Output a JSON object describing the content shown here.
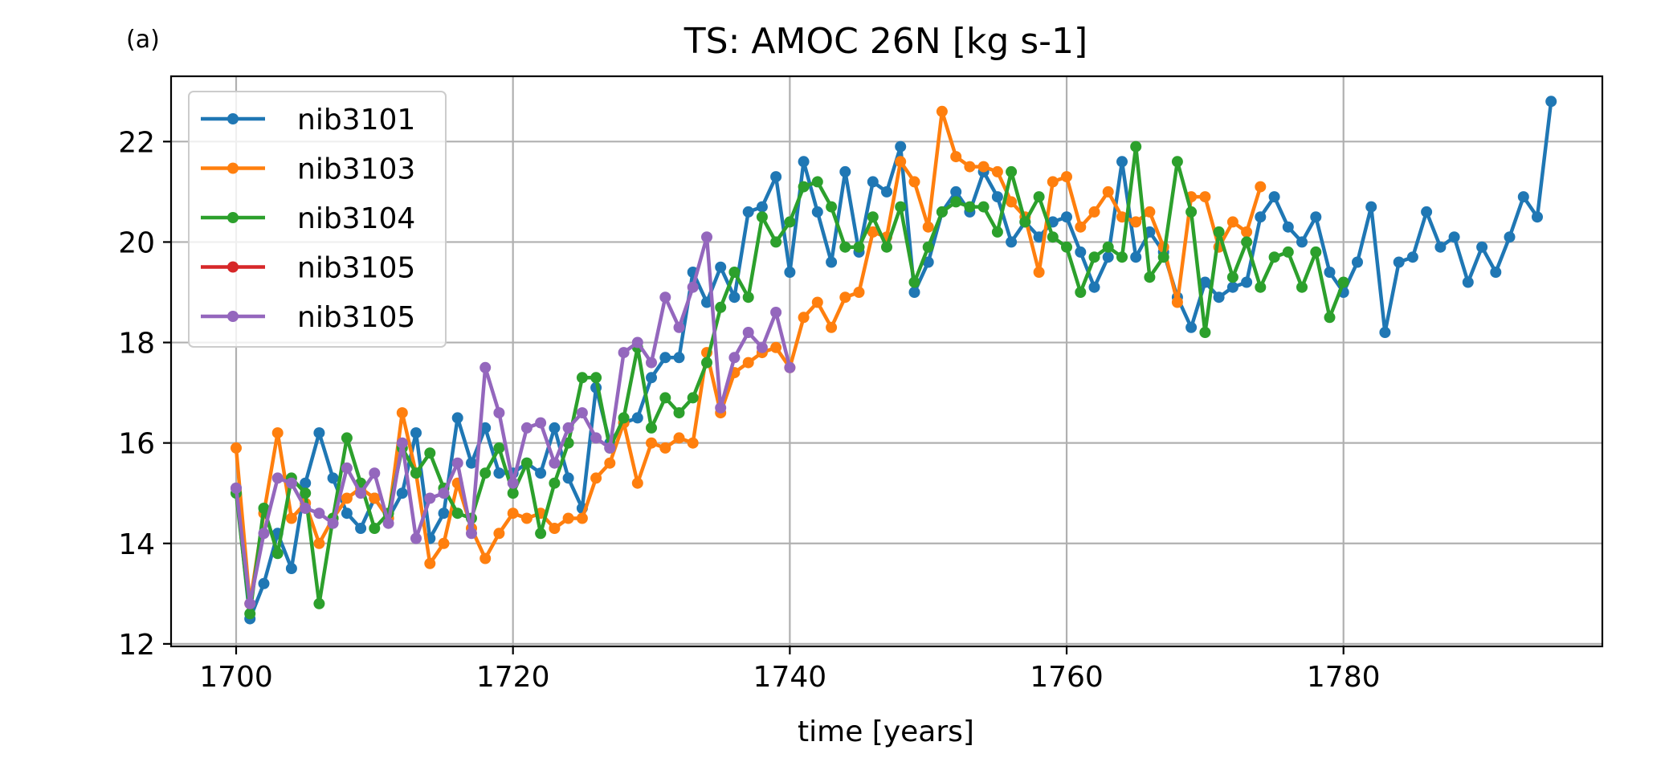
{
  "panel_label": "(a)",
  "chart_data": {
    "type": "line",
    "title": "TS: AMOC 26N [kg s-1]",
    "xlabel": "time [years]",
    "ylabel": "",
    "xlim": [
      1695.3,
      1798.7
    ],
    "ylim": [
      11.95,
      23.3
    ],
    "xticks": [
      1700,
      1720,
      1740,
      1760,
      1780
    ],
    "yticks": [
      12,
      14,
      16,
      18,
      20,
      22
    ],
    "grid": true,
    "legend_position": "upper-left",
    "series": [
      {
        "name": "nib3101",
        "color": "#1f77b4",
        "x_start": 1700,
        "values": [
          15.1,
          12.5,
          13.2,
          14.2,
          13.5,
          15.2,
          16.2,
          15.3,
          14.6,
          14.3,
          14.9,
          14.5,
          15.0,
          16.2,
          14.1,
          14.6,
          16.5,
          15.6,
          16.3,
          15.4,
          15.4,
          15.6,
          15.4,
          16.3,
          15.3,
          14.7,
          17.1,
          16.0,
          16.4,
          16.5,
          17.3,
          17.7,
          17.7,
          19.4,
          18.8,
          19.5,
          18.9,
          20.6,
          20.7,
          21.3,
          19.4,
          21.6,
          20.6,
          19.6,
          21.4,
          19.8,
          21.2,
          21.0,
          21.9,
          19.0,
          19.6,
          20.6,
          21.0,
          20.6,
          21.4,
          20.9,
          20.0,
          20.4,
          20.1,
          20.4,
          20.5,
          19.8,
          19.1,
          19.7,
          21.6,
          19.7,
          20.2,
          19.8,
          18.9,
          18.3,
          19.2,
          18.9,
          19.1,
          19.2,
          20.5,
          20.9,
          20.3,
          20.0,
          20.5,
          19.4,
          19.0,
          19.6,
          20.7,
          18.2,
          19.6,
          19.7,
          20.6,
          19.9,
          20.1,
          19.2,
          19.9,
          19.4,
          20.1,
          20.9,
          20.5,
          22.8
        ]
      },
      {
        "name": "nib3103",
        "color": "#ff7f0e",
        "x_start": 1700,
        "values": [
          15.9,
          12.8,
          14.6,
          16.2,
          14.5,
          14.8,
          14.0,
          14.5,
          14.9,
          15.1,
          14.9,
          14.5,
          16.6,
          15.4,
          13.6,
          14.0,
          15.2,
          14.3,
          13.7,
          14.2,
          14.6,
          14.5,
          14.6,
          14.3,
          14.5,
          14.5,
          15.3,
          15.6,
          16.4,
          15.2,
          16.0,
          15.9,
          16.1,
          16.0,
          17.8,
          16.6,
          17.4,
          17.6,
          17.8,
          17.9,
          17.5,
          18.5,
          18.8,
          18.3,
          18.9,
          19.0,
          20.2,
          20.1,
          21.6,
          21.2,
          20.3,
          22.6,
          21.7,
          21.5,
          21.5,
          21.4,
          20.8,
          20.5,
          19.4,
          21.2,
          21.3,
          20.3,
          20.6,
          21.0,
          20.5,
          20.4,
          20.6,
          19.9,
          18.8,
          20.9,
          20.9,
          19.9,
          20.4,
          20.2,
          21.1
        ]
      },
      {
        "name": "nib3104",
        "color": "#2ca02c",
        "x_start": 1700,
        "values": [
          15.0,
          12.6,
          14.7,
          13.8,
          15.3,
          15.0,
          12.8,
          14.5,
          16.1,
          15.2,
          14.3,
          14.6,
          15.9,
          15.4,
          15.8,
          15.1,
          14.6,
          14.5,
          15.4,
          15.9,
          15.0,
          15.6,
          14.2,
          15.2,
          16.0,
          17.3,
          17.3,
          15.9,
          16.5,
          17.9,
          16.3,
          16.9,
          16.6,
          16.9,
          17.6,
          18.7,
          19.4,
          18.9,
          20.5,
          20.0,
          20.4,
          21.1,
          21.2,
          20.7,
          19.9,
          19.9,
          20.5,
          19.9,
          20.7,
          19.2,
          19.9,
          20.6,
          20.8,
          20.7,
          20.7,
          20.2,
          21.4,
          20.4,
          20.9,
          20.1,
          19.9,
          19.0,
          19.7,
          19.9,
          19.7,
          21.9,
          19.3,
          19.7,
          21.6,
          20.6,
          18.2,
          20.2,
          19.3,
          20.0,
          19.1,
          19.7,
          19.8,
          19.1,
          19.8,
          18.5,
          19.2
        ]
      },
      {
        "name": "nib3105",
        "color": "#d62728",
        "x_start": 1700,
        "values": []
      },
      {
        "name": "nib3105",
        "color": "#9467bd",
        "x_start": 1700,
        "values": [
          15.1,
          12.8,
          14.2,
          15.3,
          15.2,
          14.7,
          14.6,
          14.4,
          15.5,
          15.0,
          15.4,
          14.4,
          16.0,
          14.1,
          14.9,
          15.0,
          15.6,
          14.2,
          17.5,
          16.6,
          15.2,
          16.3,
          16.4,
          15.6,
          16.3,
          16.6,
          16.1,
          15.9,
          17.8,
          18.0,
          17.6,
          18.9,
          18.3,
          19.1,
          20.1,
          16.7,
          17.7,
          18.2,
          17.9,
          18.6,
          17.5
        ]
      }
    ]
  }
}
